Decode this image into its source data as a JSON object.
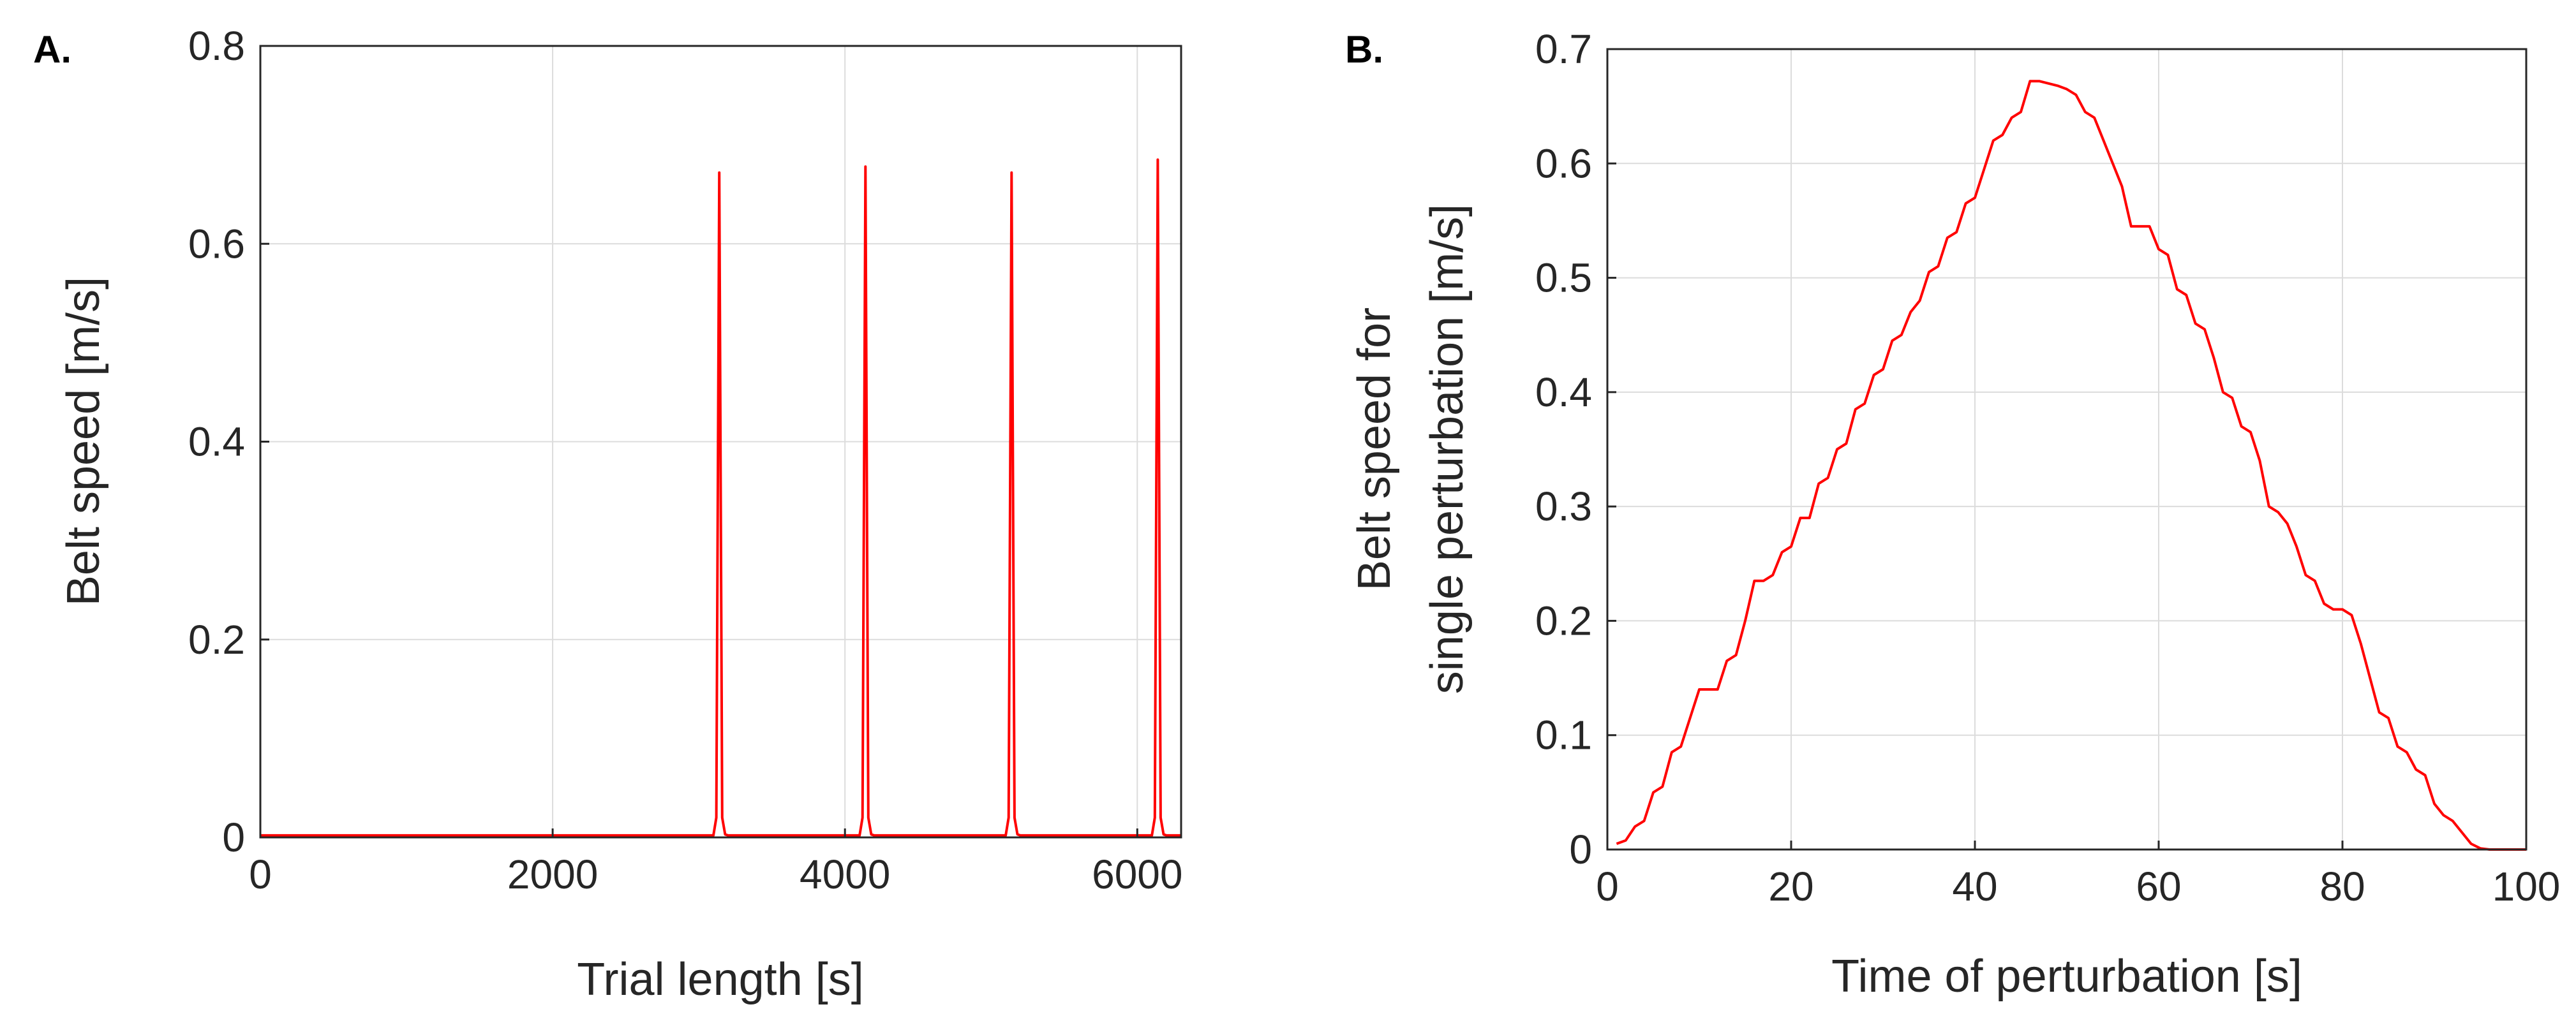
{
  "chart_data": [
    {
      "panel_label": "A.",
      "type": "line",
      "xlabel": "Trial length [s]",
      "ylabel": "Belt speed [m/s]",
      "xlim": [
        0,
        6300
      ],
      "ylim": [
        0,
        0.8
      ],
      "xticks": [
        0,
        2000,
        4000,
        6000
      ],
      "xtick_labels": [
        "0",
        "2000",
        "4000",
        "6000"
      ],
      "yticks": [
        0,
        0.2,
        0.4,
        0.6,
        0.8
      ],
      "ytick_labels": [
        "0",
        "0.2",
        "0.4",
        "0.6",
        "0.8"
      ],
      "grid": true,
      "series": [
        {
          "name": "Belt speed",
          "color": "#ff0000",
          "x": [
            0,
            3100,
            3120,
            3140,
            3160,
            3180,
            3200,
            4100,
            4120,
            4140,
            4160,
            4180,
            4200,
            5100,
            5120,
            5140,
            5160,
            5180,
            5200,
            6100,
            6120,
            6140,
            6160,
            6180,
            6200,
            6300
          ],
          "y": [
            0.002,
            0.002,
            0.02,
            0.672,
            0.02,
            0.003,
            0.002,
            0.002,
            0.02,
            0.678,
            0.02,
            0.003,
            0.002,
            0.002,
            0.02,
            0.672,
            0.02,
            0.003,
            0.002,
            0.002,
            0.02,
            0.685,
            0.02,
            0.003,
            0.002,
            0.002
          ]
        }
      ]
    },
    {
      "panel_label": "B.",
      "type": "line",
      "xlabel": "Time of perturbation [s]",
      "ylabel_lines": [
        "Belt speed for",
        "single perturbation [m/s]"
      ],
      "xlim": [
        0,
        100
      ],
      "ylim": [
        0,
        0.7
      ],
      "xticks": [
        0,
        20,
        40,
        60,
        80,
        100
      ],
      "xtick_labels": [
        "0",
        "20",
        "40",
        "60",
        "80",
        "100"
      ],
      "yticks": [
        0,
        0.1,
        0.2,
        0.3,
        0.4,
        0.5,
        0.6,
        0.7
      ],
      "ytick_labels": [
        "0",
        "0.1",
        "0.2",
        "0.3",
        "0.4",
        "0.5",
        "0.6",
        "0.7"
      ],
      "grid": true,
      "series": [
        {
          "name": "Single perturbation",
          "color": "#ff0000",
          "x": [
            1,
            2,
            3,
            4,
            5,
            6,
            7,
            8,
            9,
            10,
            11,
            12,
            13,
            14,
            15,
            16,
            17,
            18,
            19,
            20,
            21,
            22,
            23,
            24,
            25,
            26,
            27,
            28,
            29,
            30,
            31,
            32,
            33,
            34,
            35,
            36,
            37,
            38,
            39,
            40,
            41,
            42,
            43,
            44,
            45,
            46,
            47,
            48,
            49,
            50,
            51,
            52,
            53,
            54,
            55,
            56,
            57,
            58,
            59,
            60,
            61,
            62,
            63,
            64,
            65,
            66,
            67,
            68,
            69,
            70,
            71,
            72,
            73,
            74,
            75,
            76,
            77,
            78,
            79,
            80,
            81,
            82,
            83,
            84,
            85,
            86,
            87,
            88,
            89,
            90,
            91,
            92,
            93,
            94,
            95,
            96,
            97,
            98,
            99,
            100
          ],
          "y": [
            0.005,
            0.008,
            0.02,
            0.025,
            0.05,
            0.055,
            0.085,
            0.09,
            0.115,
            0.14,
            0.14,
            0.14,
            0.165,
            0.17,
            0.2,
            0.235,
            0.235,
            0.24,
            0.26,
            0.265,
            0.29,
            0.29,
            0.32,
            0.325,
            0.35,
            0.355,
            0.385,
            0.39,
            0.415,
            0.42,
            0.445,
            0.45,
            0.47,
            0.48,
            0.505,
            0.51,
            0.535,
            0.54,
            0.565,
            0.57,
            0.595,
            0.62,
            0.625,
            0.64,
            0.645,
            0.672,
            0.672,
            0.67,
            0.668,
            0.665,
            0.66,
            0.645,
            0.64,
            0.62,
            0.6,
            0.58,
            0.545,
            0.545,
            0.545,
            0.525,
            0.52,
            0.49,
            0.485,
            0.46,
            0.455,
            0.43,
            0.4,
            0.395,
            0.37,
            0.365,
            0.34,
            0.3,
            0.295,
            0.285,
            0.265,
            0.24,
            0.235,
            0.215,
            0.21,
            0.21,
            0.205,
            0.18,
            0.15,
            0.12,
            0.115,
            0.09,
            0.085,
            0.07,
            0.065,
            0.04,
            0.03,
            0.025,
            0.015,
            0.005,
            0.001,
            0.0,
            0.0,
            0.0,
            0.0,
            0.0
          ]
        }
      ]
    }
  ]
}
